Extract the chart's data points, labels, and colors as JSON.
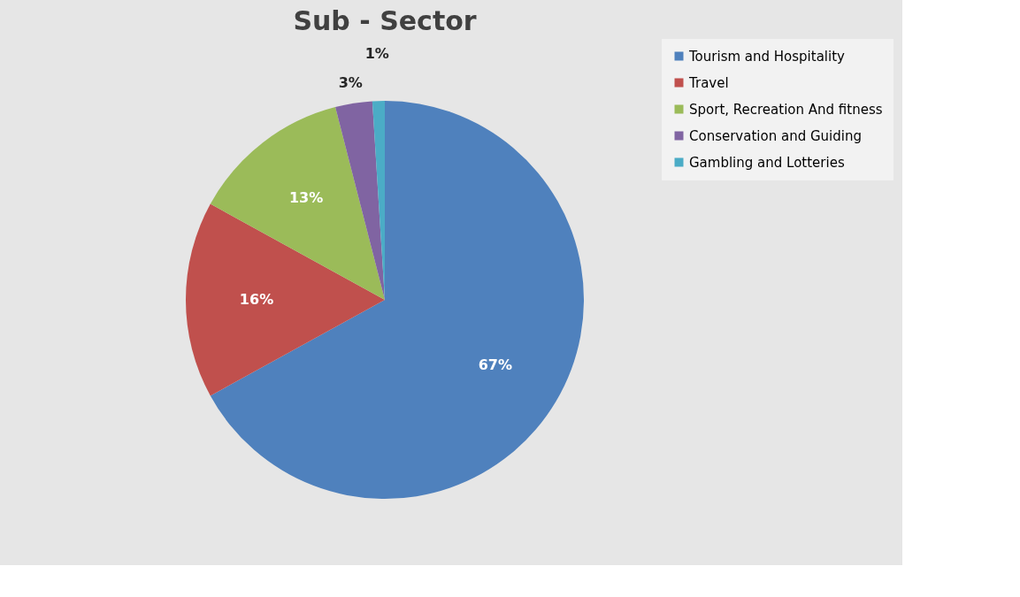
{
  "chart_data": {
    "type": "pie",
    "title": "Sub - Sector",
    "categories": [
      "Tourism and Hospitality",
      "Travel",
      "Sport, Recreation And fitness",
      "Conservation and Guiding",
      "Gambling and Lotteries"
    ],
    "values": [
      67,
      16,
      13,
      3,
      1
    ],
    "colors": [
      "#4f81bd",
      "#c0504d",
      "#9bbb59",
      "#8064a2",
      "#4bacc6"
    ],
    "value_labels": [
      "67%",
      "16%",
      "13%",
      "3%",
      "1%"
    ],
    "legend": "right"
  }
}
